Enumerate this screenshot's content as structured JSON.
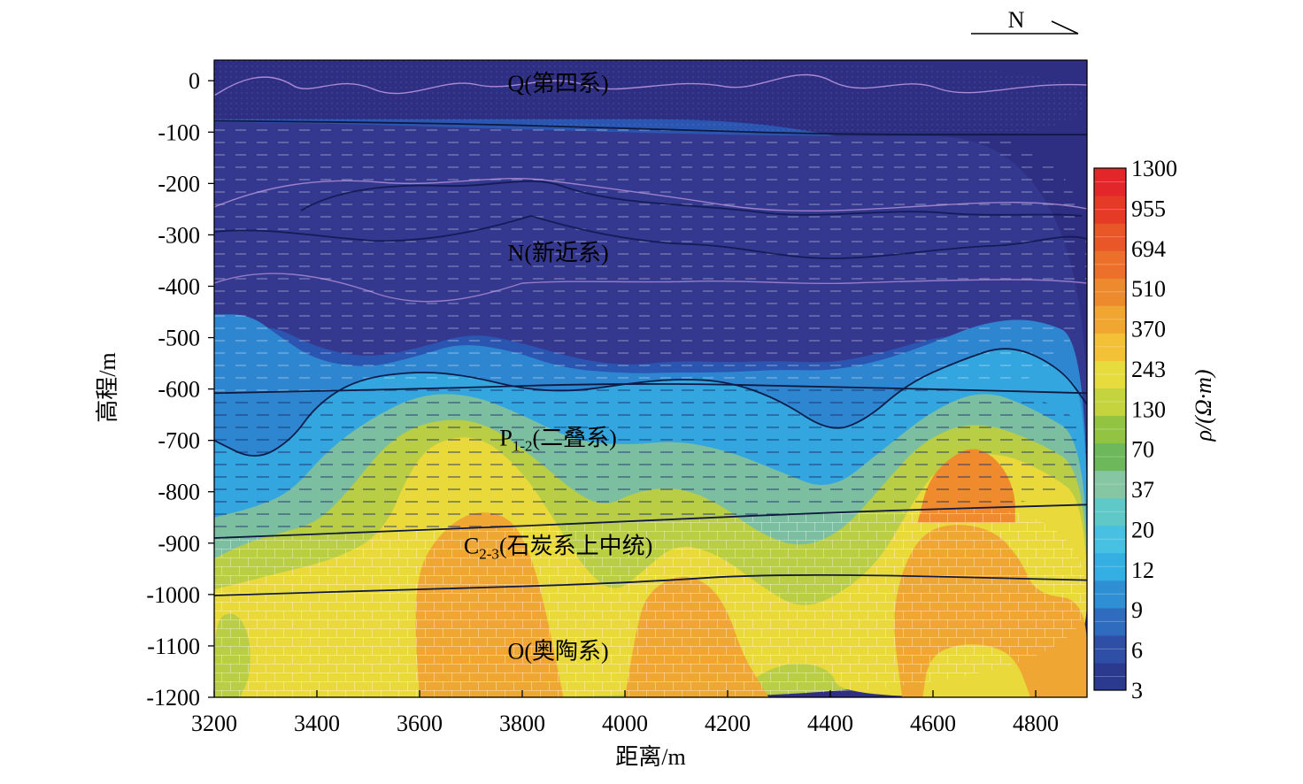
{
  "chart_data": {
    "type": "heatmap",
    "title": "",
    "north_label": "N",
    "xlabel": "距离/m",
    "ylabel": "高程/m",
    "xlim": [
      3200,
      4900
    ],
    "ylim": [
      -1200,
      40
    ],
    "x_ticks": [
      3200,
      3400,
      3600,
      3800,
      4000,
      4200,
      4400,
      4600,
      4800
    ],
    "y_ticks": [
      0,
      -100,
      -200,
      -300,
      -400,
      -500,
      -600,
      -700,
      -800,
      -900,
      -1000,
      -1100,
      -1200
    ],
    "colorbar": {
      "label": "ρ/(Ω·m)",
      "ticks": [
        3,
        6,
        9,
        12,
        20,
        37,
        70,
        130,
        243,
        370,
        510,
        694,
        955,
        1300
      ]
    },
    "strata": [
      {
        "label": "Q",
        "name": "(第四系)",
        "sub": "",
        "x": 3870,
        "y": -20
      },
      {
        "label": "N",
        "name": "(新近系)",
        "sub": "",
        "x": 3870,
        "y": -350
      },
      {
        "label": "P",
        "name": "(二叠系)",
        "sub": "1-2",
        "x": 3870,
        "y": -710
      },
      {
        "label": "C",
        "name": "(石炭系上中统)",
        "sub": "2-3",
        "x": 3870,
        "y": -920
      },
      {
        "label": "O",
        "name": "(奥陶系)",
        "sub": "",
        "x": 3870,
        "y": -1125
      }
    ],
    "boundaries": [
      {
        "name": "Q-N",
        "points": [
          [
            3200,
            -78
          ],
          [
            3600,
            -82
          ],
          [
            4000,
            -92
          ],
          [
            4400,
            -105
          ],
          [
            4900,
            -105
          ]
        ]
      },
      {
        "name": "N-P",
        "points": [
          [
            3200,
            -608
          ],
          [
            3600,
            -600
          ],
          [
            4000,
            -588
          ],
          [
            4400,
            -595
          ],
          [
            4900,
            -608
          ]
        ]
      },
      {
        "name": "P-C",
        "points": [
          [
            3200,
            -890
          ],
          [
            3600,
            -875
          ],
          [
            4000,
            -858
          ],
          [
            4400,
            -840
          ],
          [
            4900,
            -825
          ]
        ]
      },
      {
        "name": "C-O",
        "points": [
          [
            3200,
            -1002
          ],
          [
            3600,
            -990
          ],
          [
            4000,
            -978
          ],
          [
            4300,
            -958
          ],
          [
            4900,
            -972
          ]
        ]
      }
    ],
    "regions": [
      {
        "band": 2,
        "points": [
          [
            3200,
            -75
          ],
          [
            4900,
            -75
          ],
          [
            4900,
            -1200
          ],
          [
            3200,
            -1200
          ]
        ]
      },
      {
        "band": 1,
        "points": [
          [
            3200,
            -80
          ],
          [
            3500,
            -85
          ],
          [
            3800,
            -95
          ],
          [
            4300,
            -108
          ],
          [
            4900,
            -108
          ],
          [
            4900,
            -1200
          ],
          [
            3200,
            -1200
          ]
        ]
      },
      {
        "band": 2,
        "points": [
          [
            3200,
            -500
          ],
          [
            3300,
            -470
          ],
          [
            3400,
            -520
          ],
          [
            3500,
            -540
          ],
          [
            3600,
            -520
          ],
          [
            3700,
            -490
          ],
          [
            3800,
            -510
          ],
          [
            3900,
            -540
          ],
          [
            4000,
            -555
          ],
          [
            4100,
            -545
          ],
          [
            4200,
            -548
          ],
          [
            4300,
            -545
          ],
          [
            4400,
            -550
          ],
          [
            4500,
            -530
          ],
          [
            4600,
            -500
          ],
          [
            4700,
            -490
          ],
          [
            4800,
            -500
          ],
          [
            4900,
            -540
          ],
          [
            4900,
            -1200
          ],
          [
            3200,
            -1200
          ]
        ]
      },
      {
        "band": 3,
        "points": [
          [
            3200,
            -455
          ],
          [
            3270,
            -455
          ],
          [
            3330,
            -500
          ],
          [
            3400,
            -545
          ],
          [
            3500,
            -560
          ],
          [
            3600,
            -535
          ],
          [
            3680,
            -510
          ],
          [
            3780,
            -525
          ],
          [
            3880,
            -560
          ],
          [
            4000,
            -570
          ],
          [
            4100,
            -568
          ],
          [
            4200,
            -568
          ],
          [
            4300,
            -562
          ],
          [
            4400,
            -565
          ],
          [
            4500,
            -545
          ],
          [
            4600,
            -510
          ],
          [
            4700,
            -470
          ],
          [
            4800,
            -462
          ],
          [
            4900,
            -505
          ],
          [
            4900,
            -1200
          ],
          [
            3200,
            -1200
          ]
        ]
      },
      {
        "band": 4,
        "points": [
          [
            3200,
            -700
          ],
          [
            3280,
            -740
          ],
          [
            3350,
            -700
          ],
          [
            3400,
            -630
          ],
          [
            3480,
            -580
          ],
          [
            3600,
            -565
          ],
          [
            3700,
            -575
          ],
          [
            3800,
            -600
          ],
          [
            3900,
            -605
          ],
          [
            4000,
            -590
          ],
          [
            4100,
            -580
          ],
          [
            4200,
            -585
          ],
          [
            4300,
            -620
          ],
          [
            4400,
            -685
          ],
          [
            4470,
            -660
          ],
          [
            4550,
            -590
          ],
          [
            4650,
            -545
          ],
          [
            4750,
            -512
          ],
          [
            4850,
            -560
          ],
          [
            4900,
            -620
          ],
          [
            4900,
            -1200
          ],
          [
            3200,
            -1200
          ]
        ]
      },
      {
        "band": 5,
        "points": [
          [
            3200,
            -850
          ],
          [
            3280,
            -830
          ],
          [
            3350,
            -800
          ],
          [
            3420,
            -720
          ],
          [
            3500,
            -660
          ],
          [
            3600,
            -610
          ],
          [
            3700,
            -610
          ],
          [
            3800,
            -650
          ],
          [
            3900,
            -700
          ],
          [
            4000,
            -710
          ],
          [
            4100,
            -700
          ],
          [
            4200,
            -720
          ],
          [
            4300,
            -760
          ],
          [
            4400,
            -800
          ],
          [
            4500,
            -720
          ],
          [
            4600,
            -640
          ],
          [
            4700,
            -600
          ],
          [
            4800,
            -640
          ],
          [
            4900,
            -700
          ],
          [
            4900,
            -1200
          ],
          [
            3200,
            -1200
          ]
        ]
      },
      {
        "band": 6,
        "points": [
          [
            3200,
            -930
          ],
          [
            3260,
            -900
          ],
          [
            3330,
            -880
          ],
          [
            3400,
            -860
          ],
          [
            3460,
            -800
          ],
          [
            3540,
            -700
          ],
          [
            3620,
            -660
          ],
          [
            3720,
            -660
          ],
          [
            3820,
            -730
          ],
          [
            3900,
            -800
          ],
          [
            3960,
            -830
          ],
          [
            4020,
            -800
          ],
          [
            4100,
            -790
          ],
          [
            4180,
            -820
          ],
          [
            4260,
            -880
          ],
          [
            4340,
            -910
          ],
          [
            4420,
            -880
          ],
          [
            4500,
            -790
          ],
          [
            4580,
            -700
          ],
          [
            4680,
            -660
          ],
          [
            4800,
            -700
          ],
          [
            4900,
            -760
          ],
          [
            4900,
            -1200
          ],
          [
            3200,
            -1200
          ]
        ]
      },
      {
        "band": 7,
        "points": [
          [
            3200,
            -990
          ],
          [
            3320,
            -960
          ],
          [
            3440,
            -930
          ],
          [
            3530,
            -880
          ],
          [
            3580,
            -760
          ],
          [
            3630,
            -700
          ],
          [
            3720,
            -690
          ],
          [
            3800,
            -760
          ],
          [
            3860,
            -850
          ],
          [
            3920,
            -950
          ],
          [
            3980,
            -1000
          ],
          [
            4040,
            -950
          ],
          [
            4100,
            -900
          ],
          [
            4180,
            -920
          ],
          [
            4260,
            -980
          ],
          [
            4340,
            -1030
          ],
          [
            4420,
            -1000
          ],
          [
            4500,
            -930
          ],
          [
            4560,
            -820
          ],
          [
            4620,
            -740
          ],
          [
            4720,
            -720
          ],
          [
            4820,
            -760
          ],
          [
            4900,
            -820
          ],
          [
            4900,
            -1200
          ],
          [
            4420,
            -1200
          ],
          [
            4400,
            -1140
          ],
          [
            4300,
            -1130
          ],
          [
            4200,
            -1200
          ],
          [
            3200,
            -1200
          ]
        ]
      },
      {
        "band": 8,
        "points": [
          [
            3600,
            -1200
          ],
          [
            3590,
            -1050
          ],
          [
            3600,
            -940
          ],
          [
            3650,
            -870
          ],
          [
            3710,
            -835
          ],
          [
            3780,
            -850
          ],
          [
            3820,
            -930
          ],
          [
            3850,
            -1050
          ],
          [
            3880,
            -1200
          ]
        ]
      },
      {
        "band": 8,
        "points": [
          [
            4000,
            -1200
          ],
          [
            4020,
            -1080
          ],
          [
            4040,
            -1000
          ],
          [
            4100,
            -960
          ],
          [
            4160,
            -975
          ],
          [
            4200,
            -1030
          ],
          [
            4230,
            -1120
          ],
          [
            4280,
            -1200
          ]
        ]
      },
      {
        "band": 8,
        "points": [
          [
            4540,
            -1200
          ],
          [
            4520,
            -1050
          ],
          [
            4540,
            -950
          ],
          [
            4580,
            -880
          ],
          [
            4640,
            -860
          ],
          [
            4720,
            -875
          ],
          [
            4770,
            -930
          ],
          [
            4800,
            -1000
          ],
          [
            4900,
            -1010
          ],
          [
            4900,
            -1200
          ]
        ]
      },
      {
        "band": 9,
        "points": [
          [
            4570,
            -860
          ],
          [
            4590,
            -780
          ],
          [
            4630,
            -735
          ],
          [
            4680,
            -710
          ],
          [
            4730,
            -740
          ],
          [
            4760,
            -800
          ],
          [
            4760,
            -860
          ]
        ]
      },
      {
        "band": 7,
        "points": [
          [
            4580,
            -1200
          ],
          [
            4590,
            -1130
          ],
          [
            4630,
            -1100
          ],
          [
            4700,
            -1095
          ],
          [
            4760,
            -1120
          ],
          [
            4790,
            -1200
          ]
        ]
      },
      {
        "band": 6,
        "points": [
          [
            3200,
            -1200
          ],
          [
            3200,
            -1050
          ],
          [
            3240,
            -1030
          ],
          [
            3270,
            -1080
          ],
          [
            3270,
            -1160
          ],
          [
            3250,
            -1200
          ]
        ]
      }
    ]
  }
}
